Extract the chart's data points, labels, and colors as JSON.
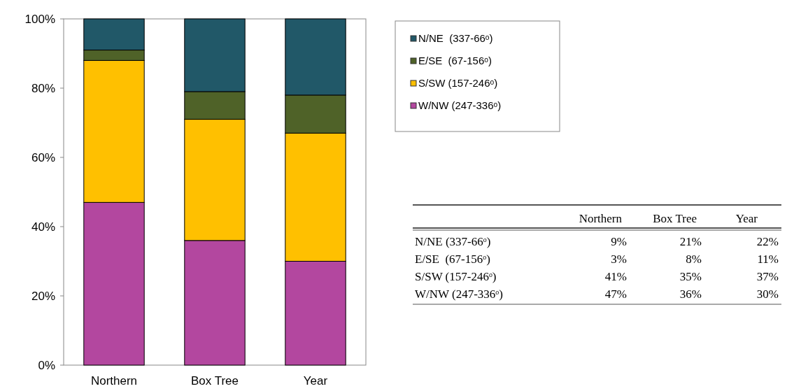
{
  "chart_data": [
    {
      "type": "bar",
      "stacked": true,
      "categories": [
        "Northern",
        "Box Tree",
        "Year"
      ],
      "series": [
        {
          "name": "W/NW (247-336ᵒ)",
          "color": "#b3479f",
          "values": [
            47,
            36,
            30
          ]
        },
        {
          "name": "S/SW (157-246ᵒ)",
          "color": "#ffc000",
          "values": [
            41,
            35,
            37
          ]
        },
        {
          "name": "E/SE  (67-156ᵒ)",
          "color": "#4f6228",
          "values": [
            3,
            8,
            11
          ]
        },
        {
          "name": "N/NE  (337-66ᵒ)",
          "color": "#215868",
          "values": [
            9,
            21,
            22
          ]
        }
      ],
      "ylim": [
        0,
        100
      ],
      "yticks": [
        {
          "value": 0,
          "label": "0%"
        },
        {
          "value": 20,
          "label": "20%"
        },
        {
          "value": 40,
          "label": "40%"
        },
        {
          "value": 60,
          "label": "60%"
        },
        {
          "value": 80,
          "label": "80%"
        },
        {
          "value": 100,
          "label": "100%"
        }
      ],
      "grid": false,
      "legend": "top right"
    },
    {
      "type": "heatmap",
      "categories": [
        "Northern",
        "Box Tree",
        "Year"
      ],
      "y_categories": [
        "N/NE (337-66ᵒ)",
        "E/SE  (67-156ᵒ)",
        "S/SW (157-246ᵒ)",
        "W/NW (247-336ᵒ)"
      ],
      "cells": [
        [
          9,
          21,
          22
        ],
        [
          3,
          8,
          11
        ],
        [
          41,
          35,
          37
        ],
        [
          47,
          36,
          30
        ]
      ],
      "cell_labels": [
        [
          "9%",
          "21%",
          "22%"
        ],
        [
          "3%",
          "8%",
          "11%"
        ],
        [
          "41%",
          "35%",
          "37%"
        ],
        [
          "47%",
          "36%",
          "30%"
        ]
      ]
    }
  ]
}
